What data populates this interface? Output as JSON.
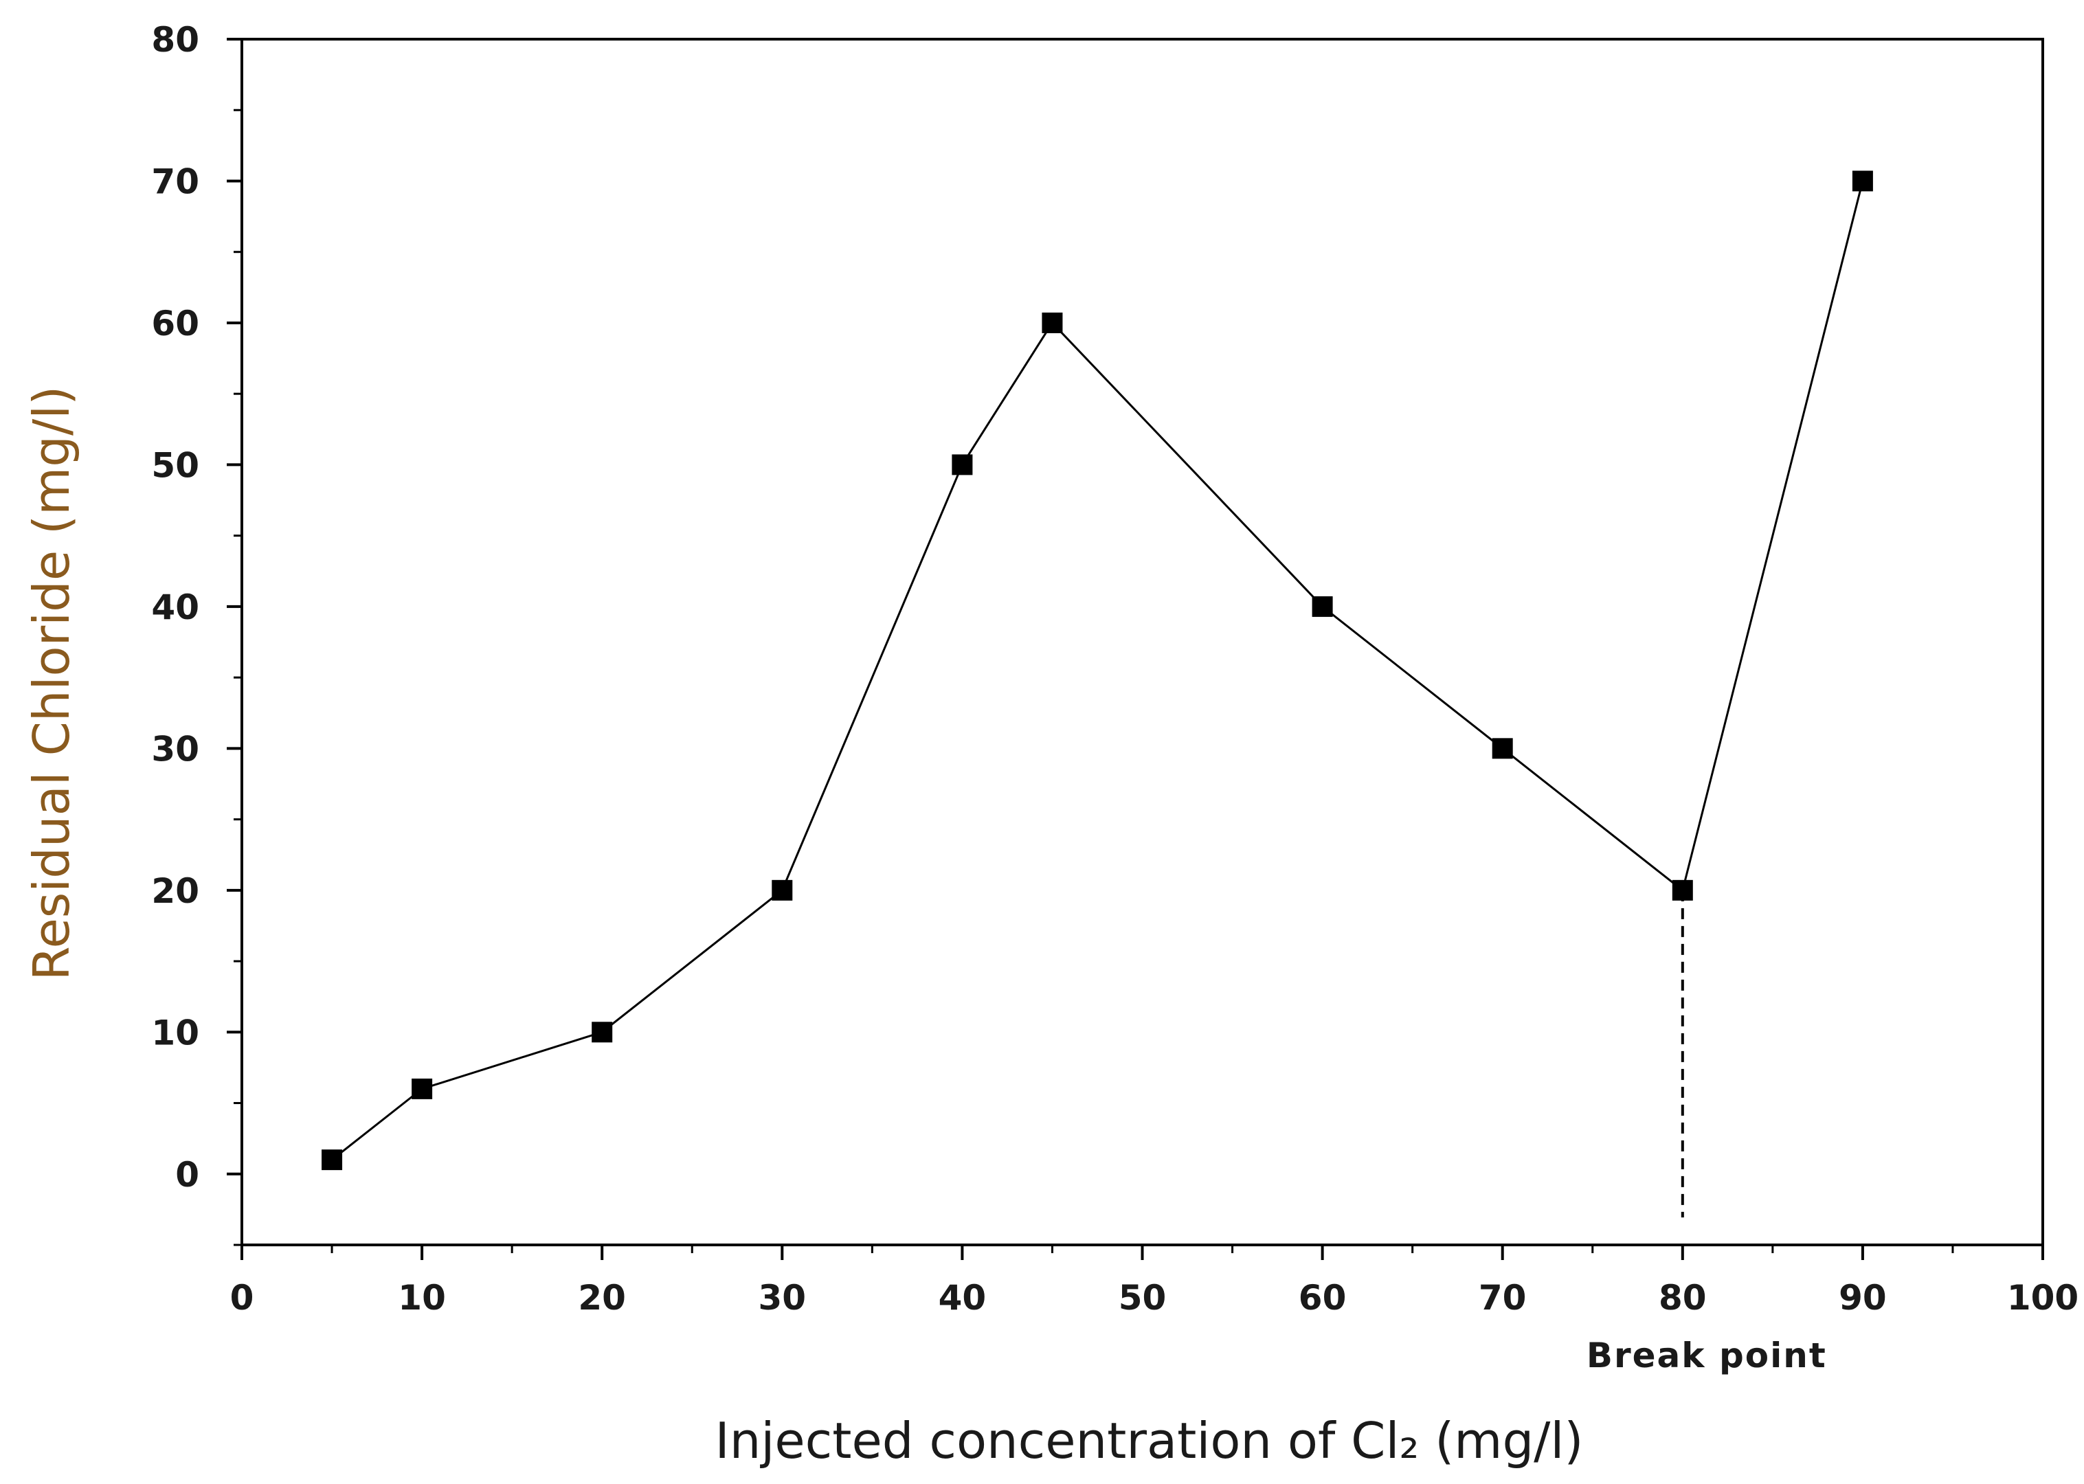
{
  "chart_data": {
    "type": "line",
    "title": "",
    "xlabel": "Injected concentration of Cl₂  (mg/l)",
    "ylabel": "Residual Chloride (mg/l)",
    "xlim": [
      0,
      100
    ],
    "ylim": [
      -5,
      80
    ],
    "x_ticks": [
      0,
      10,
      20,
      30,
      40,
      50,
      60,
      70,
      80,
      90,
      100
    ],
    "y_ticks": [
      0,
      10,
      20,
      30,
      40,
      50,
      60,
      70,
      80
    ],
    "grid": false,
    "legend": "none",
    "series": [
      {
        "x": [
          5,
          10,
          20,
          30,
          40,
          45,
          60,
          70,
          80,
          90
        ],
        "y": [
          1,
          6,
          10,
          20,
          50,
          60,
          40,
          30,
          20,
          70
        ],
        "marker": "square",
        "color": "#000000"
      }
    ],
    "annotations": [
      {
        "text": "Break point",
        "x": 80,
        "y": 20,
        "dropline": true
      }
    ]
  },
  "colors": {
    "axis": "#000000",
    "ylabel": "#8a5a1e",
    "xlabel": "#1a1a1a",
    "ticks": "#1a1a1a"
  }
}
